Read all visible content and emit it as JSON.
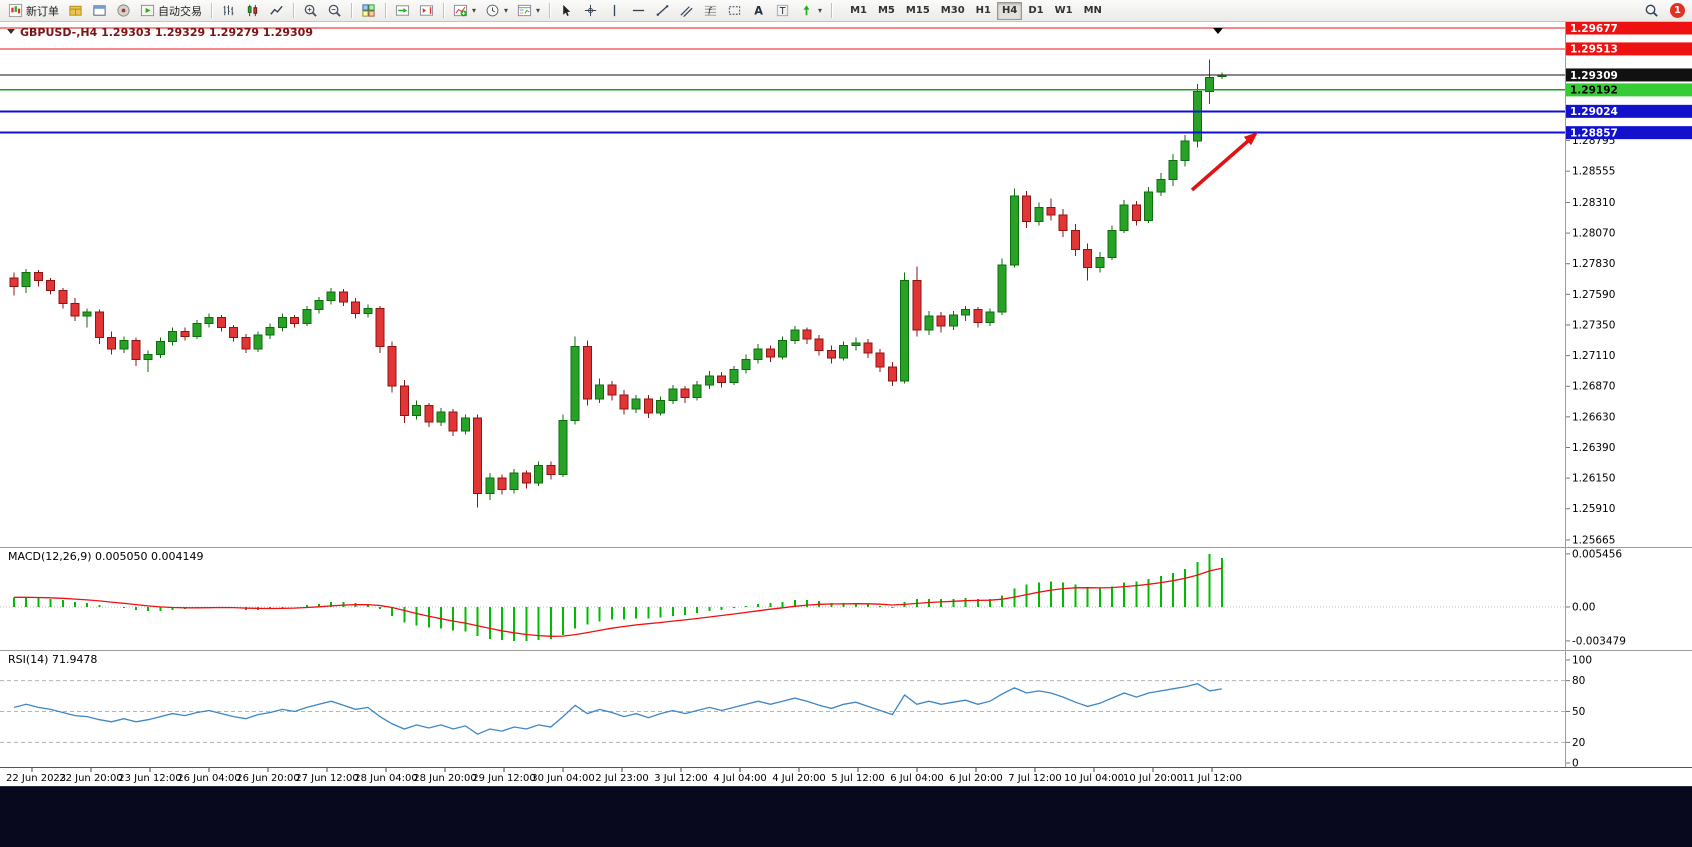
{
  "toolbar": {
    "new_order_label": "新订单",
    "autotrade_label": "自动交易",
    "timeframes": [
      "M1",
      "M5",
      "M15",
      "M30",
      "H1",
      "H4",
      "D1",
      "W1",
      "MN"
    ],
    "active_timeframe": "H4",
    "notification_count": "1"
  },
  "chart_header": {
    "title_display": "GBPUSD-,H4 1.29303 1.29329 1.29279 1.29309"
  },
  "colors": {
    "up_fill": "#27a227",
    "up_border": "#0e6e0e",
    "down_fill": "#e23535",
    "down_border": "#8f1414",
    "macd_hist": "#00bb00",
    "macd_signal": "#ee1111",
    "rsi_line": "#3d86c6",
    "arrow": "#e01212",
    "grid_sep": "#9b9b9b"
  },
  "chart_data": {
    "type": "candlestick",
    "symbol": "GBPUSD-",
    "timeframe": "H4",
    "current_bar": {
      "open": "1.29303",
      "high": "1.29329",
      "low": "1.29279",
      "close": "1.29309"
    },
    "candles": [
      [
        1.2772,
        1.2776,
        1.2758,
        1.2765
      ],
      [
        1.2765,
        1.2779,
        1.276,
        1.2776
      ],
      [
        1.2776,
        1.2778,
        1.2765,
        1.277
      ],
      [
        1.277,
        1.2772,
        1.2759,
        1.2762
      ],
      [
        1.2762,
        1.2764,
        1.2748,
        1.2752
      ],
      [
        1.2752,
        1.2756,
        1.2738,
        1.2742
      ],
      [
        1.2742,
        1.2748,
        1.2733,
        1.2745
      ],
      [
        1.2745,
        1.2747,
        1.272,
        1.2725
      ],
      [
        1.2725,
        1.273,
        1.2712,
        1.2716
      ],
      [
        1.2716,
        1.2726,
        1.2713,
        1.2723
      ],
      [
        1.2723,
        1.2725,
        1.2703,
        1.2708
      ],
      [
        1.2708,
        1.2715,
        1.2698,
        1.2712
      ],
      [
        1.2712,
        1.2725,
        1.2709,
        1.2722
      ],
      [
        1.2722,
        1.2733,
        1.2719,
        1.273
      ],
      [
        1.273,
        1.2733,
        1.2723,
        1.2726
      ],
      [
        1.2726,
        1.2739,
        1.2724,
        1.2736
      ],
      [
        1.2736,
        1.2744,
        1.2733,
        1.2741
      ],
      [
        1.2741,
        1.2743,
        1.273,
        1.2733
      ],
      [
        1.2733,
        1.2735,
        1.2722,
        1.2725
      ],
      [
        1.2725,
        1.2728,
        1.2713,
        1.2716
      ],
      [
        1.2716,
        1.273,
        1.2714,
        1.2727
      ],
      [
        1.2727,
        1.2736,
        1.2724,
        1.2733
      ],
      [
        1.2733,
        1.2744,
        1.273,
        1.2741
      ],
      [
        1.2741,
        1.2743,
        1.2733,
        1.2736
      ],
      [
        1.2736,
        1.275,
        1.2734,
        1.2747
      ],
      [
        1.2747,
        1.2757,
        1.2744,
        1.2754
      ],
      [
        1.2754,
        1.2764,
        1.2751,
        1.2761
      ],
      [
        1.2761,
        1.2763,
        1.275,
        1.2753
      ],
      [
        1.2753,
        1.2756,
        1.274,
        1.2744
      ],
      [
        1.2744,
        1.2751,
        1.2741,
        1.2748
      ],
      [
        1.2748,
        1.275,
        1.2713,
        1.2718
      ],
      [
        1.2718,
        1.2722,
        1.2682,
        1.2687
      ],
      [
        1.2687,
        1.2692,
        1.2658,
        1.2664
      ],
      [
        1.2664,
        1.2676,
        1.2661,
        1.2672
      ],
      [
        1.2672,
        1.2674,
        1.2655,
        1.2659
      ],
      [
        1.2659,
        1.267,
        1.2656,
        1.2667
      ],
      [
        1.2667,
        1.2669,
        1.2648,
        1.2652
      ],
      [
        1.2652,
        1.2665,
        1.2649,
        1.2662
      ],
      [
        1.2662,
        1.2665,
        1.2592,
        1.2603
      ],
      [
        1.2603,
        1.2619,
        1.2598,
        1.2615
      ],
      [
        1.2615,
        1.2618,
        1.2602,
        1.2606
      ],
      [
        1.2606,
        1.2622,
        1.2603,
        1.2619
      ],
      [
        1.2619,
        1.2621,
        1.2607,
        1.2611
      ],
      [
        1.2611,
        1.2628,
        1.2609,
        1.2625
      ],
      [
        1.2625,
        1.2628,
        1.2614,
        1.2618
      ],
      [
        1.2618,
        1.2665,
        1.2616,
        1.266
      ],
      [
        1.266,
        1.2726,
        1.2657,
        1.2718
      ],
      [
        1.2718,
        1.2723,
        1.2672,
        1.2677
      ],
      [
        1.2677,
        1.2693,
        1.2674,
        1.2688
      ],
      [
        1.2688,
        1.2691,
        1.2676,
        1.268
      ],
      [
        1.268,
        1.2684,
        1.2665,
        1.2669
      ],
      [
        1.2669,
        1.268,
        1.2666,
        1.2677
      ],
      [
        1.2677,
        1.268,
        1.2662,
        1.2666
      ],
      [
        1.2666,
        1.2679,
        1.2664,
        1.2676
      ],
      [
        1.2676,
        1.2688,
        1.2673,
        1.2685
      ],
      [
        1.2685,
        1.2687,
        1.2674,
        1.2678
      ],
      [
        1.2678,
        1.2691,
        1.2676,
        1.2688
      ],
      [
        1.2688,
        1.2699,
        1.2685,
        1.2695
      ],
      [
        1.2695,
        1.2698,
        1.2686,
        1.269
      ],
      [
        1.269,
        1.2703,
        1.2688,
        1.27
      ],
      [
        1.27,
        1.2712,
        1.2697,
        1.2708
      ],
      [
        1.2708,
        1.272,
        1.2705,
        1.2716
      ],
      [
        1.2716,
        1.2719,
        1.2706,
        1.271
      ],
      [
        1.271,
        1.2726,
        1.2708,
        1.2723
      ],
      [
        1.2723,
        1.2734,
        1.272,
        1.2731
      ],
      [
        1.2731,
        1.2733,
        1.272,
        1.2724
      ],
      [
        1.2724,
        1.2727,
        1.2711,
        1.2715
      ],
      [
        1.2715,
        1.2719,
        1.2705,
        1.2709
      ],
      [
        1.2709,
        1.2722,
        1.2707,
        1.2719
      ],
      [
        1.2719,
        1.2725,
        1.2715,
        1.2721
      ],
      [
        1.2721,
        1.2724,
        1.2709,
        1.2713
      ],
      [
        1.2713,
        1.2716,
        1.2698,
        1.2702
      ],
      [
        1.2702,
        1.2706,
        1.2687,
        1.2691
      ],
      [
        1.2691,
        1.2776,
        1.2689,
        1.277
      ],
      [
        1.277,
        1.2781,
        1.2726,
        1.2731
      ],
      [
        1.2731,
        1.2746,
        1.2727,
        1.2742
      ],
      [
        1.2742,
        1.2745,
        1.2729,
        1.2734
      ],
      [
        1.2734,
        1.2746,
        1.2731,
        1.2743
      ],
      [
        1.2743,
        1.275,
        1.2738,
        1.2747
      ],
      [
        1.2747,
        1.2749,
        1.2733,
        1.2737
      ],
      [
        1.2737,
        1.2748,
        1.2734,
        1.2745
      ],
      [
        1.2745,
        1.2787,
        1.2743,
        1.2782
      ],
      [
        1.2782,
        1.2842,
        1.278,
        1.2836
      ],
      [
        1.2836,
        1.284,
        1.2811,
        1.2816
      ],
      [
        1.2816,
        1.2831,
        1.2813,
        1.2827
      ],
      [
        1.2827,
        1.2834,
        1.2817,
        1.2821
      ],
      [
        1.2821,
        1.2826,
        1.2804,
        1.2809
      ],
      [
        1.2809,
        1.2814,
        1.2789,
        1.2794
      ],
      [
        1.2794,
        1.2799,
        1.277,
        1.278
      ],
      [
        1.278,
        1.2792,
        1.2776,
        1.2788
      ],
      [
        1.2788,
        1.2813,
        1.2786,
        1.2809
      ],
      [
        1.2809,
        1.2833,
        1.2807,
        1.2829
      ],
      [
        1.2829,
        1.2832,
        1.2813,
        1.2817
      ],
      [
        1.2817,
        1.2843,
        1.2815,
        1.2839
      ],
      [
        1.2839,
        1.2854,
        1.2836,
        1.2849
      ],
      [
        1.2849,
        1.2869,
        1.2844,
        1.2864
      ],
      [
        1.2864,
        1.2884,
        1.2859,
        1.2879
      ],
      [
        1.2879,
        1.2924,
        1.2874,
        1.2918
      ],
      [
        1.2918,
        1.2943,
        1.2908,
        1.2929
      ],
      [
        1.29303,
        1.29329,
        1.29279,
        1.29309
      ]
    ],
    "hlines": [
      {
        "label": "1.29677",
        "price": 1.29677,
        "color": "#ee1111",
        "badge_bg": "#ee1111",
        "badge_text": "#ffffff",
        "width": 1.2,
        "kind": "resistance"
      },
      {
        "label": "1.29513",
        "price": 1.29513,
        "color": "#ee1111",
        "badge_bg": "#ee1111",
        "badge_text": "#ffffff",
        "width": 1.2,
        "kind": "resistance"
      },
      {
        "label": "1.29309",
        "price": 1.29309,
        "color": "#111111",
        "badge_bg": "#111111",
        "badge_text": "#ffffff",
        "width": 1,
        "kind": "current-price"
      },
      {
        "label": "1.29192",
        "price": 1.29192,
        "color": "#16a216",
        "badge_bg": "#35cc35",
        "badge_text": "#000000",
        "width": 1.6,
        "kind": "support"
      },
      {
        "label": "1.29024",
        "price": 1.29024,
        "color": "#0f0fd6",
        "badge_bg": "#1212cc",
        "badge_text": "#ffffff",
        "width": 2,
        "kind": "support"
      },
      {
        "label": "1.28857",
        "price": 1.28857,
        "color": "#0f0fd6",
        "badge_bg": "#1212cc",
        "badge_text": "#ffffff",
        "width": 2,
        "kind": "support"
      }
    ],
    "y_axis_labels": [
      "1.28795",
      "1.28555",
      "1.28310",
      "1.28070",
      "1.27830",
      "1.27590",
      "1.27350",
      "1.27110",
      "1.26870",
      "1.26630",
      "1.26390",
      "1.26150",
      "1.25910",
      "1.25665"
    ],
    "x_axis_labels": [
      "22 Jun 2023",
      "22 Jun 20:00",
      "23 Jun 12:00",
      "26 Jun 04:00",
      "26 Jun 20:00",
      "27 Jun 12:00",
      "28 Jun 04:00",
      "28 Jun 20:00",
      "29 Jun 12:00",
      "30 Jun 04:00",
      "2 Jul 23:00",
      "3 Jul 12:00",
      "4 Jul 04:00",
      "4 Jul 20:00",
      "5 Jul 12:00",
      "6 Jul 04:00",
      "6 Jul 20:00",
      "7 Jul 12:00",
      "10 Jul 04:00",
      "10 Jul 20:00",
      "11 Jul 12:00"
    ],
    "macd": {
      "display": "MACD(12,26,9) 0.005050 0.004149",
      "current_macd": "0.005050",
      "current_signal": "0.004149",
      "axis_labels": [
        "0.005456",
        "0.00",
        "-0.003479"
      ],
      "values": [
        0.001,
        0.001,
        0.0009,
        0.0008,
        0.0007,
        0.0005,
        0.0004,
        0.0002,
        0.0,
        -0.0001,
        -0.0003,
        -0.0004,
        -0.0004,
        -0.0003,
        -0.0002,
        -0.0001,
        0.0,
        0.0,
        -0.0001,
        -0.0003,
        -0.0003,
        -0.0002,
        -0.0001,
        0.0,
        0.0002,
        0.0003,
        0.0005,
        0.0005,
        0.0004,
        0.0003,
        -0.0002,
        -0.0009,
        -0.0016,
        -0.0019,
        -0.0021,
        -0.0022,
        -0.0024,
        -0.0025,
        -0.003,
        -0.0033,
        -0.0034,
        -0.0035,
        -0.0035,
        -0.0034,
        -0.0033,
        -0.0029,
        -0.0022,
        -0.0018,
        -0.0015,
        -0.0013,
        -0.0013,
        -0.0012,
        -0.0012,
        -0.0011,
        -0.0009,
        -0.0008,
        -0.0006,
        -0.0004,
        -0.0003,
        -0.0001,
        0.0001,
        0.0003,
        0.0004,
        0.0005,
        0.0007,
        0.0007,
        0.0006,
        0.0004,
        0.0004,
        0.0004,
        0.0003,
        0.0001,
        -0.0001,
        0.0005,
        0.0008,
        0.0008,
        0.0008,
        0.0008,
        0.0009,
        0.0008,
        0.0008,
        0.0012,
        0.0019,
        0.0023,
        0.0025,
        0.0026,
        0.0025,
        0.0023,
        0.002,
        0.0019,
        0.0021,
        0.0025,
        0.0026,
        0.0029,
        0.0032,
        0.0035,
        0.0039,
        0.0046,
        0.005456,
        0.00505
      ]
    },
    "rsi": {
      "display": "RSI(14) 71.9478",
      "current_value": "71.9478",
      "levels": [
        80,
        50,
        20
      ],
      "axis_labels": [
        "100",
        "80",
        "50",
        "20",
        "0"
      ],
      "values": [
        54,
        57,
        54,
        52,
        49,
        46,
        45,
        42,
        40,
        43,
        40,
        42,
        45,
        48,
        46,
        49,
        51,
        48,
        45,
        43,
        47,
        49,
        52,
        50,
        54,
        57,
        60,
        56,
        52,
        54,
        45,
        38,
        33,
        37,
        34,
        37,
        33,
        36,
        28,
        33,
        31,
        35,
        33,
        37,
        35,
        45,
        56,
        48,
        52,
        49,
        45,
        48,
        44,
        48,
        51,
        48,
        51,
        54,
        51,
        54,
        57,
        60,
        57,
        60,
        63,
        60,
        56,
        53,
        57,
        59,
        55,
        51,
        47,
        66,
        57,
        60,
        57,
        59,
        61,
        57,
        60,
        67,
        73,
        68,
        70,
        68,
        64,
        59,
        55,
        58,
        63,
        68,
        64,
        68,
        70,
        72,
        74,
        77,
        70,
        71.9478
      ]
    }
  }
}
